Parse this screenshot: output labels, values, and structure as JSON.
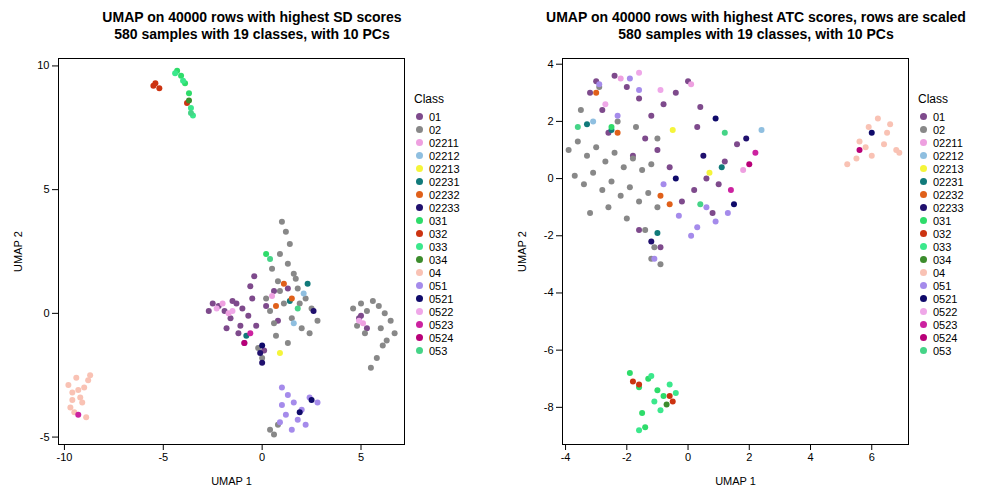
{
  "chart_data": [
    {
      "type": "scatter",
      "title": "UMAP on 40000 rows with highest SD scores",
      "subtitle": "580 samples with 19 classes, with 10 PCs",
      "xlabel": "UMAP 1",
      "ylabel": "UMAP 2",
      "legend_title": "Class",
      "legend": "right",
      "xlim": [
        -10.3,
        7.2
      ],
      "ylim": [
        -5.3,
        10.3
      ],
      "xticks": [
        -10,
        -5,
        0,
        5
      ],
      "yticks": [
        -5,
        0,
        5,
        10
      ],
      "series": [
        {
          "name": "01",
          "color": "#7E4A8C",
          "x": [
            -2.2,
            -1.9,
            -1.6,
            -1.3,
            -1.0,
            -0.7,
            -0.5,
            -1.8,
            -1.2,
            -0.3,
            0.2,
            0.6,
            -0.9,
            -1.5,
            -2.5,
            -2.7,
            -0.4,
            0.8,
            1.3,
            0.1,
            -1.1,
            -0.6,
            5.0,
            5.3,
            4.9
          ],
          "y": [
            0.3,
            0.1,
            -0.2,
            0.4,
            0.2,
            -0.1,
            0.6,
            -0.6,
            -0.8,
            -0.5,
            0.3,
            0.9,
            -1.2,
            0.5,
            0.4,
            0.1,
            1.5,
            -0.3,
            1.0,
            -1.5,
            -0.5,
            1.1,
            -0.1,
            -0.6,
            -0.2
          ]
        },
        {
          "name": "02",
          "color": "#888888",
          "x": [
            1.0,
            1.2,
            1.4,
            0.9,
            1.3,
            1.6,
            0.5,
            0.8,
            1.8,
            2.2,
            2.5,
            2.8,
            0.2,
            0.4,
            1.1,
            1.5,
            2.0,
            0.7,
            -0.2,
            0.0,
            1.9,
            2.4,
            1.3,
            0.6,
            0.9,
            1.7,
            4.6,
            5.0,
            5.3,
            5.6,
            5.9,
            6.2,
            6.5,
            6.7,
            6.1,
            5.8,
            5.5,
            6.0,
            6.3,
            5.2,
            4.8,
            0.4,
            0.6,
            0.8
          ],
          "y": [
            3.7,
            3.3,
            2.8,
            2.4,
            2.0,
            1.6,
            1.8,
            1.3,
            1.0,
            0.6,
            0.2,
            -0.3,
            0.6,
            0.1,
            0.4,
            -0.2,
            -0.6,
            -0.9,
            -1.4,
            -1.8,
            0.4,
            -0.8,
            -1.2,
            -0.4,
            0.9,
            1.4,
            0.2,
            0.4,
            0.1,
            0.5,
            0.3,
            0.0,
            -0.3,
            -0.8,
            -1.3,
            -1.8,
            -2.2,
            -0.6,
            -1.1,
            -0.8,
            -0.5,
            -4.7,
            -4.9,
            -4.5
          ]
        },
        {
          "name": "02211",
          "color": "#EEA0E0",
          "x": [
            -2.0,
            -1.7,
            0.5,
            5.1
          ],
          "y": [
            0.4,
            0.0,
            0.7,
            -0.4
          ]
        },
        {
          "name": "02212",
          "color": "#8FBFE0",
          "x": [
            1.6,
            2.1
          ],
          "y": [
            -0.4,
            0.8
          ]
        },
        {
          "name": "02213",
          "color": "#F5F53A",
          "x": [
            0.9
          ],
          "y": [
            -1.6
          ]
        },
        {
          "name": "02231",
          "color": "#117A7A",
          "x": [
            -0.8,
            1.4,
            2.3
          ],
          "y": [
            -0.9,
            0.5,
            1.2
          ]
        },
        {
          "name": "02232",
          "color": "#E0601A",
          "x": [
            1.1,
            1.5,
            0.7
          ],
          "y": [
            1.2,
            0.6,
            0.3
          ]
        },
        {
          "name": "02233",
          "color": "#20106E",
          "x": [
            0.0,
            -0.1,
            2.6
          ],
          "y": [
            -2.0,
            -1.6,
            0.1
          ]
        },
        {
          "name": "031",
          "color": "#2EDC6A",
          "x": [
            -4.3,
            -4.1,
            -3.9,
            -3.7,
            0.2
          ],
          "y": [
            9.8,
            9.6,
            9.3,
            8.9,
            2.4
          ]
        },
        {
          "name": "032",
          "color": "#CC3311",
          "x": [
            -5.4,
            -5.2,
            -5.5,
            -3.8
          ],
          "y": [
            9.3,
            9.1,
            9.2,
            8.5
          ]
        },
        {
          "name": "033",
          "color": "#3BE88C",
          "x": [
            -4.4,
            -4.0,
            -3.6,
            -3.5
          ],
          "y": [
            9.7,
            9.4,
            8.3,
            8.0
          ]
        },
        {
          "name": "034",
          "color": "#3C8C2C",
          "x": [
            -3.7
          ],
          "y": [
            8.6
          ]
        },
        {
          "name": "04",
          "color": "#F9C2B4",
          "x": [
            -9.8,
            -9.6,
            -9.4,
            -9.2,
            -9.0,
            -8.8,
            -9.7,
            -9.5,
            -9.1,
            -8.9,
            -9.3,
            -9.6,
            -8.7
          ],
          "y": [
            -2.9,
            -3.2,
            -2.6,
            -3.4,
            -3.0,
            -2.7,
            -3.8,
            -4.0,
            -3.6,
            -4.2,
            -3.1,
            -3.5,
            -2.5
          ]
        },
        {
          "name": "051",
          "color": "#A58BEB",
          "x": [
            1.0,
            1.3,
            1.6,
            2.0,
            2.4,
            2.8,
            1.2,
            1.8,
            2.2,
            1.0,
            1.5,
            0.9
          ],
          "y": [
            -3.0,
            -3.3,
            -3.6,
            -3.9,
            -3.4,
            -3.6,
            -4.1,
            -4.3,
            -4.5,
            -3.7,
            -4.7,
            -4.4
          ]
        },
        {
          "name": "0521",
          "color": "#0F0A6A",
          "x": [
            0.0,
            2.5,
            1.9
          ],
          "y": [
            -1.3,
            -3.5,
            -4.0
          ]
        },
        {
          "name": "0522",
          "color": "#EFA7E8",
          "x": [
            -2.3,
            4.9,
            -1.5
          ],
          "y": [
            0.2,
            -0.3,
            0.1
          ]
        },
        {
          "name": "0523",
          "color": "#CC22A0",
          "x": [
            -9.3,
            -0.6
          ],
          "y": [
            -4.1,
            -0.8
          ]
        },
        {
          "name": "0524",
          "color": "#B80078",
          "x": [
            -0.9
          ],
          "y": [
            -1.2
          ]
        },
        {
          "name": "053",
          "color": "#45D487",
          "x": [
            0.4,
            -3.6,
            1.8
          ],
          "y": [
            2.2,
            8.1,
            0.2
          ]
        }
      ]
    },
    {
      "type": "scatter",
      "title": "UMAP on 40000 rows with highest ATC scores, rows are scaled",
      "subtitle": "580 samples with 19 classes, with 10 PCs",
      "xlabel": "UMAP 1",
      "ylabel": "UMAP 2",
      "legend_title": "Class",
      "legend": "right",
      "xlim": [
        -4.1,
        7.2
      ],
      "ylim": [
        -9.3,
        4.2
      ],
      "xticks": [
        -4,
        -2,
        0,
        2,
        4,
        6
      ],
      "yticks": [
        -8,
        -6,
        -4,
        -2,
        0,
        2,
        4
      ],
      "series": [
        {
          "name": "01",
          "color": "#7E4A8C",
          "x": [
            -3.2,
            -2.8,
            -2.4,
            -2.0,
            -1.6,
            -1.2,
            -0.8,
            -0.4,
            0.0,
            0.4,
            -1.4,
            -1.0,
            -0.6,
            0.2,
            0.8,
            1.2,
            1.6,
            -2.6,
            -1.8,
            -0.2,
            0.6,
            1.0,
            -3.0,
            -0.9,
            -1.6,
            0.3
          ],
          "y": [
            3.0,
            2.4,
            3.6,
            3.2,
            2.8,
            2.2,
            2.6,
            3.0,
            3.4,
            2.5,
            1.4,
            1.0,
            0.4,
            -0.4,
            -1.2,
            0.6,
            1.2,
            1.6,
            0.8,
            -0.8,
            0.0,
            -0.2,
            3.4,
            -2.4,
            -1.8,
            1.8
          ]
        },
        {
          "name": "02",
          "color": "#888888",
          "x": [
            -3.9,
            -3.6,
            -3.3,
            -3.0,
            -2.7,
            -2.4,
            -2.1,
            -1.8,
            -1.5,
            -1.2,
            -3.7,
            -3.4,
            -3.1,
            -2.8,
            -2.5,
            -2.2,
            -1.9,
            -1.6,
            -1.3,
            -1.0,
            -3.2,
            -2.6,
            -2.0,
            -1.4,
            -1.1,
            -0.9,
            -3.5,
            -2.9,
            -2.3,
            -1.7,
            -1.0,
            -1.2
          ],
          "y": [
            1.0,
            1.3,
            0.8,
            1.1,
            0.6,
            0.9,
            0.4,
            0.7,
            0.3,
            0.5,
            0.1,
            -0.2,
            0.2,
            -0.4,
            -0.1,
            -0.6,
            -0.3,
            -0.8,
            -0.5,
            -1.0,
            -1.2,
            -1.0,
            -1.4,
            -1.8,
            -2.4,
            -3.0,
            2.4,
            3.2,
            2.0,
            1.8,
            1.4,
            -2.8
          ]
        },
        {
          "name": "02211",
          "color": "#EEA0E0",
          "x": [
            -2.2,
            0.1,
            1.8
          ],
          "y": [
            3.5,
            3.3,
            0.3
          ]
        },
        {
          "name": "02212",
          "color": "#8FBFE0",
          "x": [
            -3.1,
            2.4
          ],
          "y": [
            2.0,
            1.7
          ]
        },
        {
          "name": "02213",
          "color": "#F5F53A",
          "x": [
            -0.5,
            0.7
          ],
          "y": [
            1.7,
            0.2
          ]
        },
        {
          "name": "02231",
          "color": "#117A7A",
          "x": [
            -3.3,
            -2.5,
            -1.0,
            1.1
          ],
          "y": [
            1.9,
            1.7,
            -1.9,
            0.4
          ]
        },
        {
          "name": "02232",
          "color": "#E0601A",
          "x": [
            -3.0,
            -2.3,
            -0.9,
            -0.6
          ],
          "y": [
            3.0,
            1.6,
            -0.6,
            -0.9
          ]
        },
        {
          "name": "02233",
          "color": "#20106E",
          "x": [
            -1.2,
            0.5,
            1.9
          ],
          "y": [
            -2.2,
            0.8,
            1.4
          ]
        },
        {
          "name": "031",
          "color": "#2EDC6A",
          "x": [
            -1.9,
            -1.6,
            -1.3,
            -1.0,
            -0.8,
            -1.5,
            -1.4,
            -2.5
          ],
          "y": [
            -6.8,
            -7.3,
            -7.0,
            -7.4,
            -7.6,
            -8.2,
            -8.7,
            1.8
          ]
        },
        {
          "name": "032",
          "color": "#CC3311",
          "x": [
            -1.8,
            -1.6,
            -0.5,
            -0.6
          ],
          "y": [
            -7.1,
            -7.2,
            -7.8,
            -7.6
          ]
        },
        {
          "name": "033",
          "color": "#3BE88C",
          "x": [
            -1.2,
            -0.6,
            -0.4,
            -1.6,
            -1.1,
            -0.9
          ],
          "y": [
            -6.9,
            -7.2,
            -7.5,
            -8.8,
            -7.8,
            -8.1
          ]
        },
        {
          "name": "034",
          "color": "#3C8C2C",
          "x": [
            -0.7
          ],
          "y": [
            -7.9
          ]
        },
        {
          "name": "04",
          "color": "#F9C2B4",
          "x": [
            5.2,
            5.6,
            5.9,
            6.2,
            6.5,
            6.8,
            6.0,
            6.4,
            5.8,
            6.6,
            6.9,
            5.5
          ],
          "y": [
            0.5,
            1.3,
            1.8,
            2.1,
            1.6,
            1.0,
            0.8,
            1.2,
            1.1,
            1.9,
            0.9,
            0.7
          ]
        },
        {
          "name": "051",
          "color": "#A58BEB",
          "x": [
            -2.9,
            -1.9,
            -1.6,
            -0.3,
            0.3,
            0.9,
            1.3,
            0.1,
            -0.8,
            -2.3,
            -1.1,
            0.6
          ],
          "y": [
            3.3,
            3.5,
            3.1,
            -1.3,
            -1.7,
            -1.5,
            -1.2,
            -2.0,
            -0.2,
            2.2,
            -2.8,
            -1.0
          ]
        },
        {
          "name": "0521",
          "color": "#0F0A6A",
          "x": [
            6.0,
            0.9,
            -0.4,
            1.5
          ],
          "y": [
            1.6,
            2.1,
            0.0,
            -0.9
          ]
        },
        {
          "name": "0522",
          "color": "#EFA7E8",
          "x": [
            -1.6,
            -0.9,
            -2.7
          ],
          "y": [
            3.7,
            3.1,
            2.6
          ]
        },
        {
          "name": "0523",
          "color": "#CC22A0",
          "x": [
            1.4,
            2.2
          ],
          "y": [
            -0.4,
            0.9
          ]
        },
        {
          "name": "0524",
          "color": "#B80078",
          "x": [
            5.6,
            2.0
          ],
          "y": [
            1.0,
            0.5
          ]
        },
        {
          "name": "053",
          "color": "#45D487",
          "x": [
            -3.6,
            0.4,
            1.2
          ],
          "y": [
            1.8,
            -0.9,
            1.6
          ]
        }
      ]
    }
  ]
}
